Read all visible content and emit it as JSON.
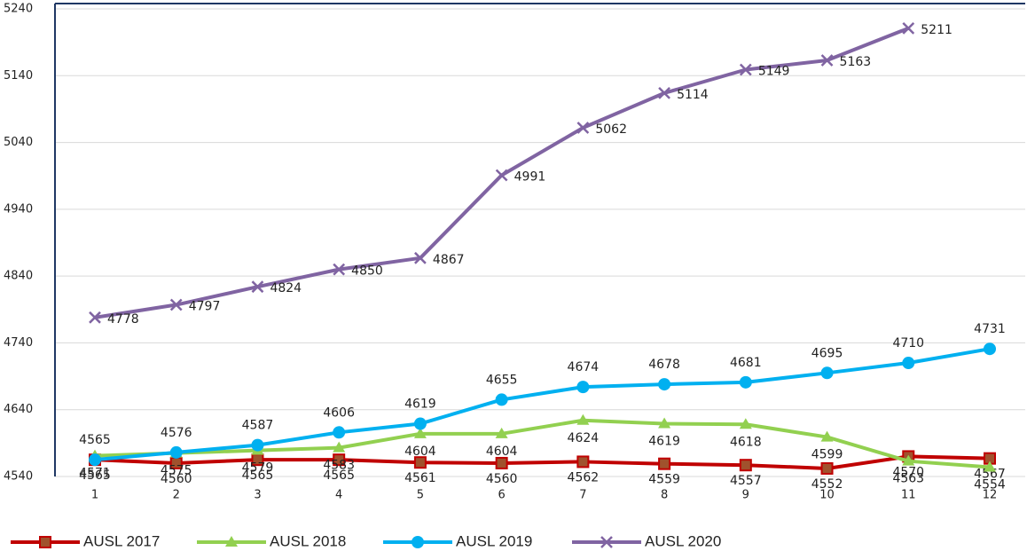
{
  "chart_data": {
    "type": "line",
    "categories": [
      "1",
      "2",
      "3",
      "4",
      "5",
      "6",
      "7",
      "8",
      "9",
      "10",
      "11",
      "12"
    ],
    "ylim": [
      4540,
      5240
    ],
    "yticks": [
      4540,
      4640,
      4740,
      4840,
      4940,
      5040,
      5140,
      5240
    ],
    "grid": true,
    "legend": "bottom",
    "series": [
      {
        "name": "AUSL 2017",
        "color": "#c00000",
        "marker": "square",
        "values": [
          4565,
          4560,
          4565,
          4565,
          4561,
          4560,
          4562,
          4559,
          4557,
          4552,
          4570,
          4567
        ]
      },
      {
        "name": "AUSL 2018",
        "color": "#92d050",
        "marker": "triangle",
        "values": [
          4571,
          4575,
          4579,
          4583,
          4604,
          4604,
          4624,
          4619,
          4618,
          4599,
          4563,
          4554
        ]
      },
      {
        "name": "AUSL 2019",
        "color": "#00b0f0",
        "marker": "circle",
        "values": [
          4565,
          4576,
          4587,
          4606,
          4619,
          4655,
          4674,
          4678,
          4681,
          4695,
          4710,
          4731
        ]
      },
      {
        "name": "AUSL 2020",
        "color": "#8064a2",
        "marker": "x",
        "values": [
          4778,
          4797,
          4824,
          4850,
          4867,
          4991,
          5062,
          5114,
          5149,
          5163,
          5211,
          null
        ]
      }
    ]
  }
}
